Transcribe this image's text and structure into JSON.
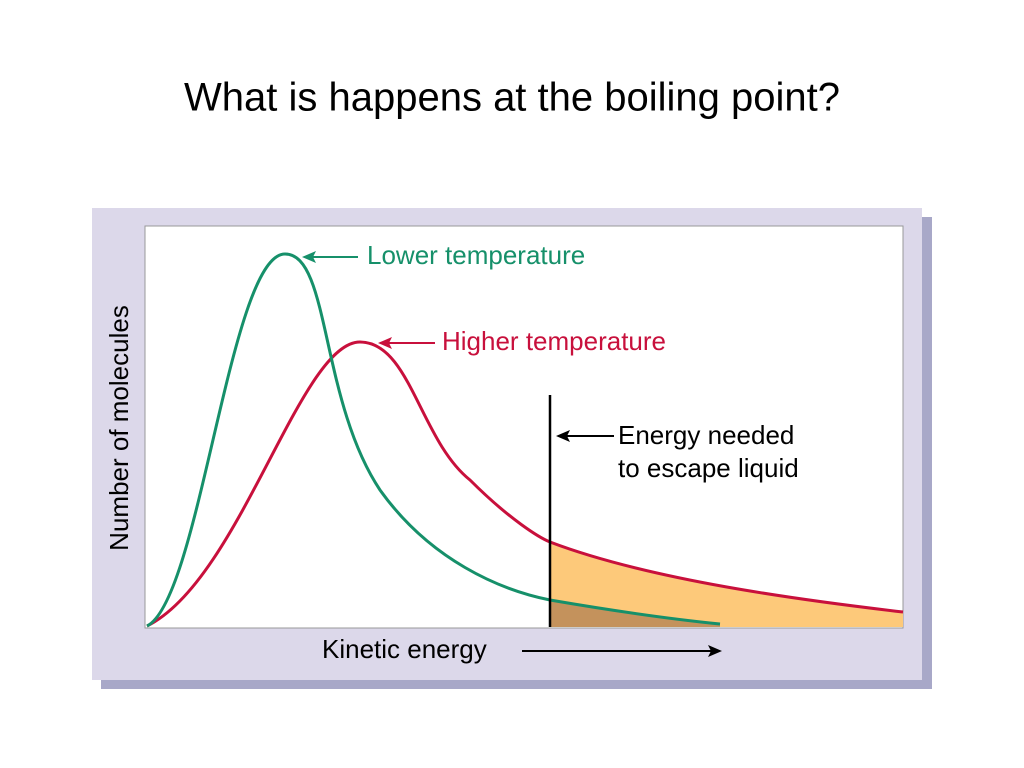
{
  "header": {
    "title": "What is happens at the boiling point?"
  },
  "diagram": {
    "y_axis_label": "Number of molecules",
    "x_axis_label": "Kinetic energy",
    "curves": [
      {
        "label": "Lower temperature"
      },
      {
        "label": "Higher temperature"
      }
    ],
    "threshold_label": [
      "Energy needed",
      "to escape liquid"
    ]
  }
}
